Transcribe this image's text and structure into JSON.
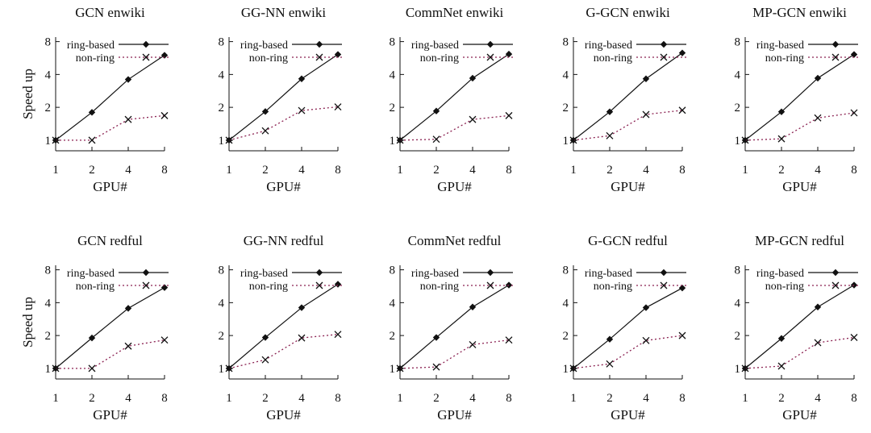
{
  "figure": {
    "x_label": "GPU#",
    "y_label": "Speed up",
    "x_ticks": [
      "1",
      "2",
      "4",
      "8"
    ],
    "y_ticks": [
      "1",
      "2",
      "4",
      "8"
    ],
    "legend": [
      "ring-based",
      "non-ring"
    ]
  },
  "colors": {
    "ring-based": "#111111",
    "non-ring": "#8b2252"
  },
  "chart_data": [
    {
      "type": "line",
      "title": "GCN enwiki",
      "xlabel": "GPU#",
      "ylabel": "Speed up",
      "x": [
        1,
        2,
        4,
        8
      ],
      "xscale": "log2",
      "yscale": "log2",
      "ylim": [
        0.8,
        8.8
      ],
      "legend_position": "top-right",
      "grid": false,
      "series": [
        {
          "name": "ring-based",
          "values": [
            1.0,
            1.8,
            3.6,
            6.0
          ]
        },
        {
          "name": "non-ring",
          "values": [
            1.0,
            1.0,
            1.55,
            1.68
          ]
        }
      ]
    },
    {
      "type": "line",
      "title": "GG-NN enwiki",
      "xlabel": "GPU#",
      "ylabel": "Speed up",
      "x": [
        1,
        2,
        4,
        8
      ],
      "xscale": "log2",
      "yscale": "log2",
      "ylim": [
        0.8,
        8.8
      ],
      "legend_position": "top-right",
      "grid": false,
      "series": [
        {
          "name": "ring-based",
          "values": [
            1.0,
            1.83,
            3.65,
            6.1
          ]
        },
        {
          "name": "non-ring",
          "values": [
            1.0,
            1.22,
            1.87,
            2.02
          ]
        }
      ]
    },
    {
      "type": "line",
      "title": "CommNet enwiki",
      "xlabel": "GPU#",
      "ylabel": "Speed up",
      "x": [
        1,
        2,
        4,
        8
      ],
      "xscale": "log2",
      "yscale": "log2",
      "ylim": [
        0.8,
        8.8
      ],
      "legend_position": "top-right",
      "grid": false,
      "series": [
        {
          "name": "ring-based",
          "values": [
            1.0,
            1.85,
            3.7,
            6.15
          ]
        },
        {
          "name": "non-ring",
          "values": [
            1.0,
            1.02,
            1.55,
            1.68
          ]
        }
      ]
    },
    {
      "type": "line",
      "title": "G-GCN enwiki",
      "xlabel": "GPU#",
      "ylabel": "Speed up",
      "x": [
        1,
        2,
        4,
        8
      ],
      "xscale": "log2",
      "yscale": "log2",
      "ylim": [
        0.8,
        8.8
      ],
      "legend_position": "top-right",
      "grid": false,
      "series": [
        {
          "name": "ring-based",
          "values": [
            1.0,
            1.82,
            3.65,
            6.3
          ]
        },
        {
          "name": "non-ring",
          "values": [
            1.0,
            1.1,
            1.72,
            1.88
          ]
        }
      ]
    },
    {
      "type": "line",
      "title": "MP-GCN enwiki",
      "xlabel": "GPU#",
      "ylabel": "Speed up",
      "x": [
        1,
        2,
        4,
        8
      ],
      "xscale": "log2",
      "yscale": "log2",
      "ylim": [
        0.8,
        8.8
      ],
      "legend_position": "top-right",
      "grid": false,
      "series": [
        {
          "name": "ring-based",
          "values": [
            1.0,
            1.82,
            3.7,
            6.1
          ]
        },
        {
          "name": "non-ring",
          "values": [
            1.0,
            1.03,
            1.6,
            1.78
          ]
        }
      ]
    },
    {
      "type": "line",
      "title": "GCN redful",
      "xlabel": "GPU#",
      "ylabel": "Speed up",
      "x": [
        1,
        2,
        4,
        8
      ],
      "xscale": "log2",
      "yscale": "log2",
      "ylim": [
        0.8,
        8.8
      ],
      "legend_position": "top-right",
      "grid": false,
      "series": [
        {
          "name": "ring-based",
          "values": [
            1.0,
            1.9,
            3.55,
            5.5
          ]
        },
        {
          "name": "non-ring",
          "values": [
            1.0,
            1.0,
            1.6,
            1.82
          ]
        }
      ]
    },
    {
      "type": "line",
      "title": "GG-NN redful",
      "xlabel": "GPU#",
      "ylabel": "Speed up",
      "x": [
        1,
        2,
        4,
        8
      ],
      "xscale": "log2",
      "yscale": "log2",
      "ylim": [
        0.8,
        8.8
      ],
      "legend_position": "top-right",
      "grid": false,
      "series": [
        {
          "name": "ring-based",
          "values": [
            1.0,
            1.92,
            3.6,
            5.9
          ]
        },
        {
          "name": "non-ring",
          "values": [
            1.0,
            1.2,
            1.9,
            2.05
          ]
        }
      ]
    },
    {
      "type": "line",
      "title": "CommNet redful",
      "xlabel": "GPU#",
      "ylabel": "Speed up",
      "x": [
        1,
        2,
        4,
        8
      ],
      "xscale": "log2",
      "yscale": "log2",
      "ylim": [
        0.8,
        8.8
      ],
      "legend_position": "top-right",
      "grid": false,
      "series": [
        {
          "name": "ring-based",
          "values": [
            1.0,
            1.92,
            3.65,
            5.8
          ]
        },
        {
          "name": "non-ring",
          "values": [
            1.0,
            1.03,
            1.65,
            1.82
          ]
        }
      ]
    },
    {
      "type": "line",
      "title": "G-GCN redful",
      "xlabel": "GPU#",
      "ylabel": "Speed up",
      "x": [
        1,
        2,
        4,
        8
      ],
      "xscale": "log2",
      "yscale": "log2",
      "ylim": [
        0.8,
        8.8
      ],
      "legend_position": "top-right",
      "grid": false,
      "series": [
        {
          "name": "ring-based",
          "values": [
            1.0,
            1.85,
            3.6,
            5.45
          ]
        },
        {
          "name": "non-ring",
          "values": [
            1.0,
            1.1,
            1.8,
            2.0
          ]
        }
      ]
    },
    {
      "type": "line",
      "title": "MP-GCN redful",
      "xlabel": "GPU#",
      "ylabel": "Speed up",
      "x": [
        1,
        2,
        4,
        8
      ],
      "xscale": "log2",
      "yscale": "log2",
      "ylim": [
        0.8,
        8.8
      ],
      "legend_position": "top-right",
      "grid": false,
      "series": [
        {
          "name": "ring-based",
          "values": [
            1.0,
            1.88,
            3.65,
            5.8
          ]
        },
        {
          "name": "non-ring",
          "values": [
            1.0,
            1.05,
            1.72,
            1.92
          ]
        }
      ]
    }
  ]
}
